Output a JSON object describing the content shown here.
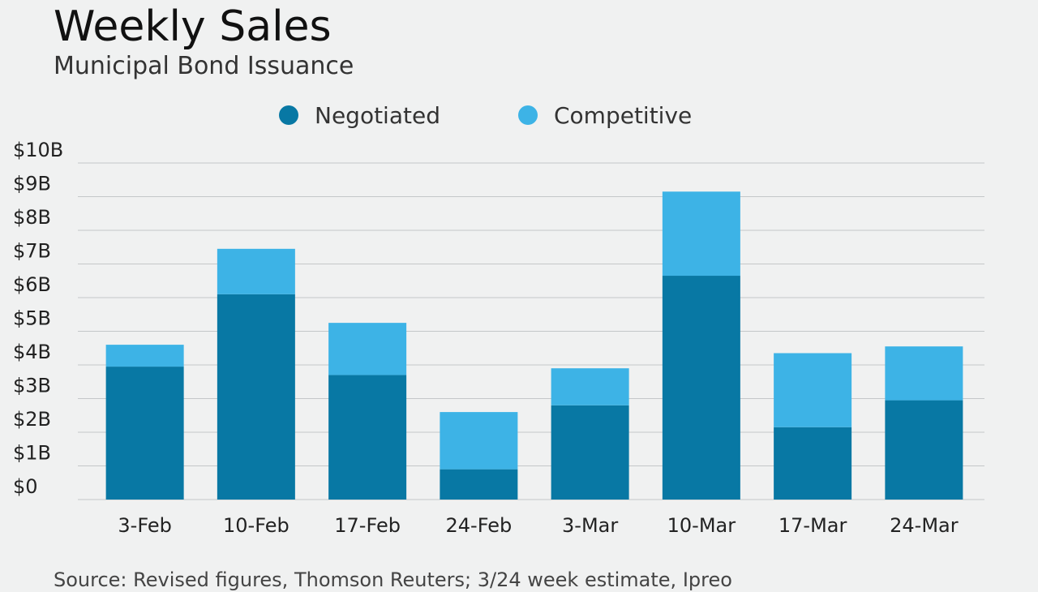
{
  "header": {
    "title": "Weekly Sales",
    "subtitle": "Municipal Bond Issuance"
  },
  "footer": {
    "source": "Source: Revised figures, Thomson Reuters; 3/24 week estimate, Ipreo"
  },
  "colors": {
    "negotiated": "#0878a4",
    "competitive": "#3db3e6",
    "grid": "#c4c7c9"
  },
  "chart_data": {
    "type": "bar",
    "stacked": true,
    "title": "Weekly Sales",
    "subtitle": "Municipal Bond Issuance",
    "categories": [
      "3-Feb",
      "10-Feb",
      "17-Feb",
      "24-Feb",
      "3-Mar",
      "10-Mar",
      "17-Mar",
      "24-Mar"
    ],
    "series": [
      {
        "name": "Negotiated",
        "values": [
          3.95,
          6.1,
          3.7,
          0.9,
          2.8,
          6.65,
          2.15,
          2.95
        ]
      },
      {
        "name": "Competitive",
        "values": [
          0.65,
          1.35,
          1.55,
          1.7,
          1.1,
          2.5,
          2.2,
          1.6
        ]
      }
    ],
    "ylim": [
      0,
      10
    ],
    "yticks": [
      "$0",
      "$1B",
      "$2B",
      "$3B",
      "$4B",
      "$5B",
      "$6B",
      "$7B",
      "$8B",
      "$9B",
      "$10B"
    ],
    "legend_position": "top",
    "grid": true
  }
}
